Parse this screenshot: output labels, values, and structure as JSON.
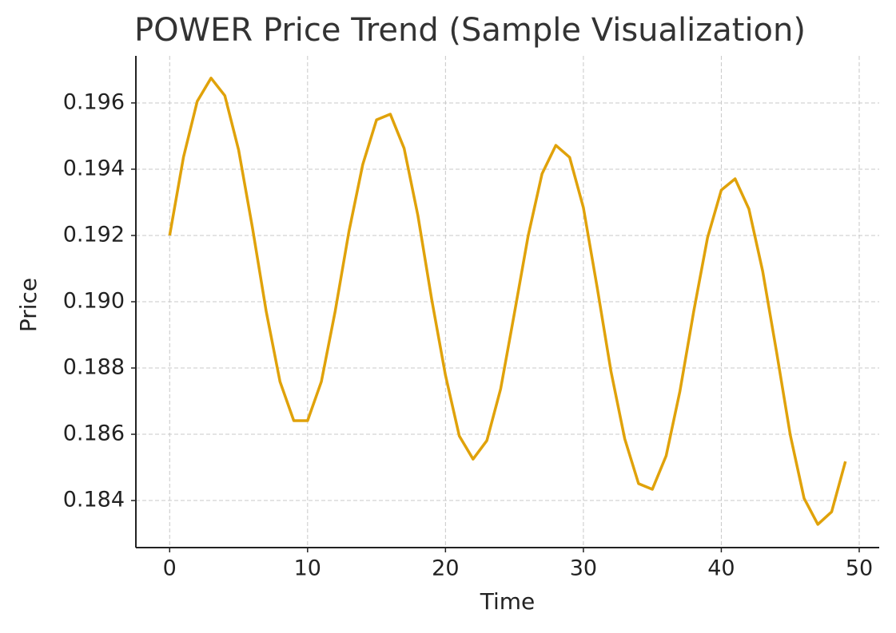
{
  "chart_data": {
    "type": "line",
    "title": "POWER Price Trend (Sample Visualization)",
    "xlabel": "Time",
    "ylabel": "Price",
    "x": [
      0,
      1,
      2,
      3,
      4,
      5,
      6,
      7,
      8,
      9,
      10,
      11,
      12,
      13,
      14,
      15,
      16,
      17,
      18,
      19,
      20,
      21,
      22,
      23,
      24,
      25,
      26,
      27,
      28,
      29,
      30,
      31,
      32,
      33,
      34,
      35,
      36,
      37,
      38,
      39,
      40,
      41,
      42,
      43,
      44,
      45,
      46,
      47,
      48,
      49
    ],
    "series": [
      {
        "name": "POWER",
        "color": "#e0a20a",
        "values": [
          0.192,
          0.19436,
          0.19605,
          0.19675,
          0.19622,
          0.19458,
          0.19224,
          0.18971,
          0.18759,
          0.18641,
          0.18641,
          0.18759,
          0.18971,
          0.19212,
          0.19414,
          0.19549,
          0.19566,
          0.19463,
          0.1926,
          0.19007,
          0.18778,
          0.18595,
          0.18525,
          0.18581,
          0.18737,
          0.18966,
          0.192,
          0.19386,
          0.19472,
          0.19436,
          0.19284,
          0.19043,
          0.1879,
          0.18586,
          0.18451,
          0.18434,
          0.18535,
          0.1873,
          0.18971,
          0.19193,
          0.19337,
          0.19371,
          0.1928,
          0.19092,
          0.1885,
          0.18598,
          0.18407,
          0.18328,
          0.18366,
          0.18518
        ]
      }
    ],
    "xlim": [
      -2.45,
      51.45
    ],
    "ylim": [
      0.18258,
      0.19742
    ],
    "xticks": [
      0,
      10,
      20,
      30,
      40,
      50
    ],
    "yticks": [
      0.184,
      0.186,
      0.188,
      {
        "value": 0.19,
        "label": "0.190"
      },
      0.192,
      0.194,
      0.196
    ],
    "grid": true
  }
}
